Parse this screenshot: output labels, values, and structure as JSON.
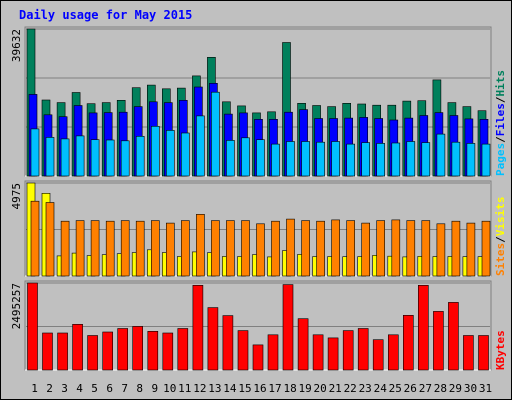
{
  "title": "Daily usage for May 2015",
  "colors": {
    "background": "#c0c0c0",
    "title": "#0000ff",
    "hits": "#00805c",
    "files": "#0000ff",
    "pages": "#00c0ff",
    "visits": "#ffff00",
    "sites": "#ff8000",
    "kbytes": "#ff0000",
    "weekday_label": "#000000",
    "weekend_label": "#00805c"
  },
  "chart_data": [
    {
      "type": "bar",
      "panel": "top",
      "x": [
        1,
        2,
        3,
        4,
        5,
        6,
        7,
        8,
        9,
        10,
        11,
        12,
        13,
        14,
        15,
        16,
        17,
        18,
        19,
        20,
        21,
        22,
        23,
        24,
        25,
        26,
        27,
        28,
        29,
        30,
        31
      ],
      "ymax_label": "39632",
      "ymax": 39632,
      "series": [
        {
          "name": "Hits",
          "values": [
            39632,
            20500,
            19800,
            22500,
            19500,
            19800,
            20400,
            23800,
            24500,
            23500,
            23700,
            27000,
            32000,
            20000,
            18900,
            17000,
            17300,
            36000,
            19600,
            19000,
            18700,
            19600,
            19400,
            19100,
            19100,
            20200,
            20300,
            25900,
            19800,
            18700,
            17600
          ]
        },
        {
          "name": "Files",
          "values": [
            22000,
            16500,
            16000,
            19000,
            17000,
            17100,
            17200,
            18700,
            20000,
            19800,
            20400,
            24000,
            25000,
            16700,
            17000,
            15300,
            15300,
            17200,
            17900,
            15500,
            15500,
            15600,
            15800,
            15500,
            15100,
            15600,
            16300,
            17100,
            16300,
            15400,
            15300
          ]
        },
        {
          "name": "Pages",
          "values": [
            12700,
            10400,
            10000,
            10800,
            9800,
            9700,
            9500,
            10700,
            13400,
            12300,
            11600,
            16200,
            22600,
            9600,
            10300,
            9800,
            8600,
            9300,
            9300,
            9100,
            9300,
            8600,
            9000,
            8800,
            8900,
            9300,
            9000,
            11300,
            9100,
            8800,
            8600
          ]
        }
      ],
      "legend": [
        "Pages",
        "/",
        "Files",
        "/",
        "Hits"
      ]
    },
    {
      "type": "bar",
      "panel": "middle",
      "x": [
        1,
        2,
        3,
        4,
        5,
        6,
        7,
        8,
        9,
        10,
        11,
        12,
        13,
        14,
        15,
        16,
        17,
        18,
        19,
        20,
        21,
        22,
        23,
        24,
        25,
        26,
        27,
        28,
        29,
        30,
        31
      ],
      "ymax_label": "4975",
      "ymax": 4975,
      "series": [
        {
          "name": "Visits",
          "values": [
            4975,
            4425,
            1075,
            1225,
            1090,
            1140,
            1195,
            1250,
            1400,
            1250,
            1040,
            1290,
            1245,
            1045,
            1040,
            1145,
            1020,
            1360,
            1155,
            1040,
            1040,
            1030,
            1040,
            1110,
            1060,
            1020,
            1050,
            1040,
            1045,
            1030,
            1030
          ]
        },
        {
          "name": "Sites",
          "values": [
            4000,
            3930,
            2930,
            2965,
            2965,
            2930,
            2965,
            2930,
            2965,
            2830,
            2965,
            3300,
            2965,
            2965,
            2965,
            2795,
            2930,
            3045,
            2965,
            2930,
            3000,
            2965,
            2830,
            2965,
            3000,
            2965,
            2965,
            2795,
            2930,
            2830,
            2930
          ]
        }
      ],
      "legend": [
        "Sites",
        "/",
        "Visits"
      ]
    },
    {
      "type": "bar",
      "panel": "bottom",
      "x": [
        1,
        2,
        3,
        4,
        5,
        6,
        7,
        8,
        9,
        10,
        11,
        12,
        13,
        14,
        15,
        16,
        17,
        18,
        19,
        20,
        21,
        22,
        23,
        24,
        25,
        26,
        27,
        28,
        29,
        30,
        31
      ],
      "ymax_label": "2495257",
      "ymax": 2495257,
      "series": [
        {
          "name": "KBytes",
          "values": [
            2495257,
            1060000,
            1060000,
            1310000,
            990000,
            1090000,
            1190000,
            1250000,
            1110000,
            1060000,
            1190000,
            2430000,
            1790000,
            1560000,
            1130000,
            720000,
            1010000,
            2450000,
            1470000,
            1010000,
            920000,
            1130000,
            1190000,
            870000,
            1010000,
            1570000,
            2430000,
            1680000,
            1940000,
            990000,
            990000
          ]
        }
      ],
      "legend": [
        "KBytes"
      ]
    }
  ],
  "x_labels": [
    "1",
    "2",
    "3",
    "4",
    "5",
    "6",
    "7",
    "8",
    "9",
    "10",
    "11",
    "12",
    "13",
    "14",
    "15",
    "16",
    "17",
    "18",
    "19",
    "20",
    "21",
    "22",
    "23",
    "24",
    "25",
    "26",
    "27",
    "28",
    "29",
    "30",
    "31"
  ],
  "weekend_days": [
    2,
    3,
    9,
    10,
    16,
    17,
    23,
    24,
    30,
    31
  ]
}
